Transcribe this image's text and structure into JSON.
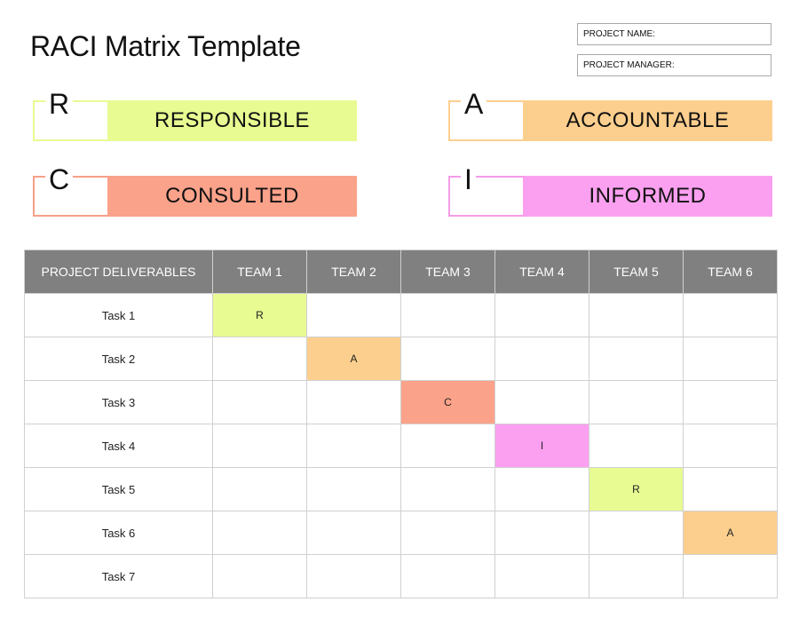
{
  "title": "RACI Matrix Template",
  "fields": {
    "project_name": "PROJECT NAME:",
    "project_manager": "PROJECT MANAGER:"
  },
  "legend": [
    {
      "letter": "R",
      "label": "RESPONSIBLE",
      "color": "#e7fb92"
    },
    {
      "letter": "A",
      "label": "ACCOUNTABLE",
      "color": "#fdcf8e"
    },
    {
      "letter": "C",
      "label": "CONSULTED",
      "color": "#fba28a"
    },
    {
      "letter": "I",
      "label": "INFORMED",
      "color": "#fba0f0"
    }
  ],
  "table": {
    "header_first": "PROJECT DELIVERABLES",
    "teams": [
      "TEAM 1",
      "TEAM 2",
      "TEAM 3",
      "TEAM 4",
      "TEAM 5",
      "TEAM 6"
    ],
    "rows": [
      {
        "task": "Task 1",
        "cells": [
          "R",
          "",
          "",
          "",
          "",
          ""
        ]
      },
      {
        "task": "Task 2",
        "cells": [
          "",
          "A",
          "",
          "",
          "",
          ""
        ]
      },
      {
        "task": "Task 3",
        "cells": [
          "",
          "",
          "C",
          "",
          "",
          ""
        ]
      },
      {
        "task": "Task 4",
        "cells": [
          "",
          "",
          "",
          "I",
          "",
          ""
        ]
      },
      {
        "task": "Task 5",
        "cells": [
          "",
          "",
          "",
          "",
          "R",
          ""
        ]
      },
      {
        "task": "Task 6",
        "cells": [
          "",
          "",
          "",
          "",
          "",
          "A"
        ]
      },
      {
        "task": "Task 7",
        "cells": [
          "",
          "",
          "",
          "",
          "",
          ""
        ]
      }
    ]
  },
  "colors": {
    "R": "#e7fb92",
    "A": "#fdcf8e",
    "C": "#fba28a",
    "I": "#fba0f0",
    "header_bg": "#808080",
    "bracket_R": "#e7fb92",
    "bracket_A": "#fdcf8e",
    "bracket_C": "#f6a088",
    "bracket_I": "#f39ce9"
  }
}
